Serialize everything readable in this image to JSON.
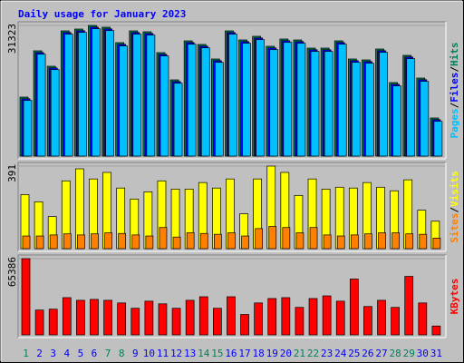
{
  "title": "Daily usage for January 2023",
  "title_color": "#0000ff",
  "separator": "/",
  "chart_data": [
    {
      "type": "bar",
      "ylim": [
        0,
        31323
      ],
      "yticks": [
        31323
      ],
      "series": [
        {
          "name": "Hits",
          "color": "#00805c",
          "values": [
            14139,
            25232,
            21535,
            30018,
            30453,
            31323,
            30888,
            27190,
            30018,
            29801,
            24798,
            18272,
            27625,
            26755,
            23275,
            30018,
            27843,
            28713,
            26320,
            28060,
            27843,
            25885,
            25885,
            27625,
            23275,
            23058,
            25668,
            17620,
            24145,
            18707,
            9136
          ]
        },
        {
          "name": "Files",
          "color": "#0000ff",
          "values": [
            13739,
            24832,
            21135,
            29618,
            30053,
            30923,
            30488,
            26790,
            29618,
            29401,
            24398,
            17872,
            27225,
            26355,
            22875,
            29618,
            27443,
            28313,
            25920,
            27660,
            27443,
            25485,
            25485,
            27225,
            22875,
            22658,
            25268,
            17220,
            23745,
            18307,
            8736
          ]
        },
        {
          "name": "Pages",
          "color": "#00c0ff",
          "values": [
            13339,
            24432,
            20735,
            29218,
            29653,
            30523,
            30088,
            26390,
            29218,
            29001,
            23998,
            17472,
            26825,
            25955,
            22475,
            29218,
            27043,
            27913,
            25520,
            27260,
            27043,
            25085,
            25085,
            26825,
            22475,
            22258,
            24868,
            16820,
            23345,
            17907,
            8336
          ]
        }
      ]
    },
    {
      "type": "bar",
      "ylim": [
        0,
        391
      ],
      "yticks": [
        391
      ],
      "series": [
        {
          "name": "Visits",
          "color": "#ffff00",
          "values": [
            256,
            222,
            152,
            321,
            378,
            330,
            361,
            287,
            235,
            269,
            321,
            282,
            282,
            313,
            287,
            330,
            165,
            330,
            391,
            361,
            252,
            330,
            282,
            291,
            287,
            313,
            291,
            274,
            326,
            182,
            130
          ]
        },
        {
          "name": "Sites",
          "color": "#ff8000",
          "values": [
            60,
            60,
            65,
            70,
            65,
            70,
            75,
            72,
            65,
            60,
            100,
            55,
            75,
            72,
            68,
            75,
            60,
            95,
            105,
            100,
            75,
            100,
            65,
            60,
            65,
            70,
            75,
            75,
            70,
            68,
            50
          ]
        }
      ]
    },
    {
      "type": "bar",
      "ylim": [
        0,
        65386
      ],
      "yticks": [
        65386
      ],
      "categories": [
        "1",
        "2",
        "3",
        "4",
        "5",
        "6",
        "7",
        "8",
        "9",
        "10",
        "11",
        "12",
        "13",
        "14",
        "15",
        "16",
        "17",
        "18",
        "19",
        "20",
        "21",
        "22",
        "23",
        "24",
        "25",
        "26",
        "27",
        "28",
        "29",
        "30",
        "31"
      ],
      "category_colors": [
        "#00805c",
        "#0000ff",
        "#0000ff",
        "#0000ff",
        "#0000ff",
        "#0000ff",
        "#00805c",
        "#00805c",
        "#0000ff",
        "#0000ff",
        "#0000ff",
        "#0000ff",
        "#0000ff",
        "#00805c",
        "#00805c",
        "#0000ff",
        "#0000ff",
        "#0000ff",
        "#0000ff",
        "#0000ff",
        "#00805c",
        "#00805c",
        "#0000ff",
        "#0000ff",
        "#0000ff",
        "#0000ff",
        "#0000ff",
        "#00805c",
        "#00805c",
        "#0000ff",
        "#0000ff"
      ],
      "series": [
        {
          "name": "KBytes",
          "color": "#ff0000",
          "values": [
            65386,
            21288,
            22049,
            31933,
            29652,
            30412,
            29652,
            27371,
            22809,
            28891,
            26611,
            22809,
            29652,
            32693,
            22809,
            32693,
            17487,
            27371,
            31172,
            31933,
            23569,
            31172,
            33453,
            28891,
            47899,
            24330,
            29652,
            23569,
            50180,
            27371,
            7603
          ]
        }
      ]
    }
  ]
}
